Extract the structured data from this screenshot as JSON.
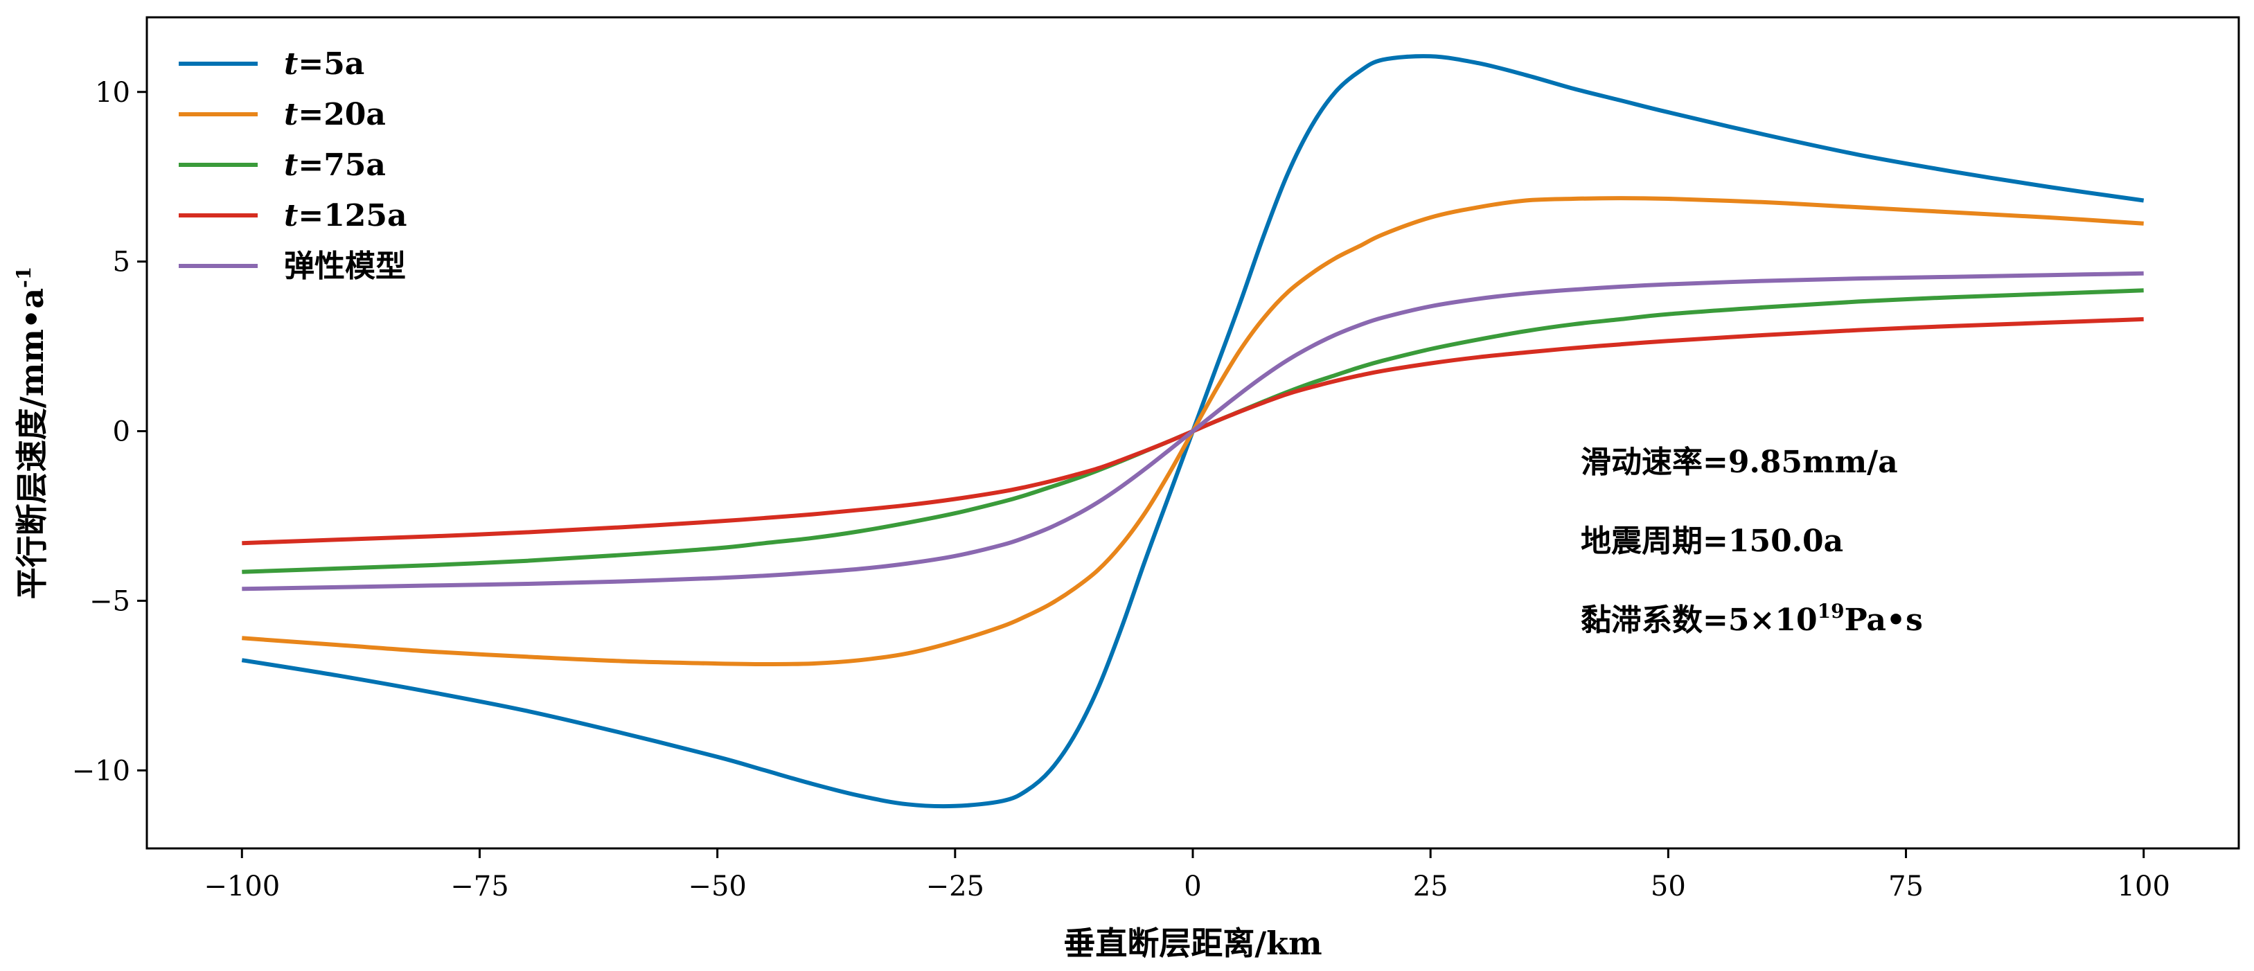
{
  "chart_data": {
    "type": "line",
    "xlabel": "垂直断层距离/km",
    "ylabel": {
      "base": "平行断层速度/mm•a",
      "sup": "-1"
    },
    "xlim": [
      -110,
      110
    ],
    "ylim": [
      -12.3,
      12.2
    ],
    "xticks": [
      -100,
      -75,
      -50,
      -25,
      0,
      25,
      50,
      75,
      100
    ],
    "xtick_labels": [
      "−100",
      "−75",
      "−50",
      "−25",
      "0",
      "25",
      "50",
      "75",
      "100"
    ],
    "yticks": [
      -10,
      -5,
      0,
      5,
      10
    ],
    "ytick_labels": [
      "−10",
      "−5",
      "0",
      "5",
      "10"
    ],
    "grid": false,
    "legend_position": "top-left",
    "x": [
      -100,
      -90,
      -80,
      -70,
      -60,
      -50,
      -45,
      -40,
      -35,
      -30,
      -25,
      -20,
      -17.5,
      -15,
      -12.5,
      -10,
      -7.5,
      -5,
      -2.5,
      0,
      2.5,
      5,
      7.5,
      10,
      12.5,
      15,
      17.5,
      20,
      25,
      30,
      35,
      40,
      45,
      50,
      60,
      70,
      80,
      90,
      100
    ],
    "series": [
      {
        "name": {
          "italic": "t",
          "rest": "=5a"
        },
        "color": "#0072b2",
        "values": [
          -6.75,
          -7.2,
          -7.7,
          -8.25,
          -8.9,
          -9.6,
          -10.0,
          -10.4,
          -10.75,
          -11.0,
          -11.05,
          -10.9,
          -10.6,
          -10.0,
          -9.0,
          -7.6,
          -5.8,
          -3.8,
          -1.9,
          0,
          1.9,
          3.8,
          5.8,
          7.6,
          9.0,
          10.0,
          10.6,
          10.95,
          11.05,
          10.85,
          10.5,
          10.1,
          9.75,
          9.4,
          8.75,
          8.15,
          7.65,
          7.2,
          6.8
        ]
      },
      {
        "name": {
          "italic": "t",
          "rest": "=20a"
        },
        "color": "#e8851a",
        "values": [
          -6.1,
          -6.3,
          -6.5,
          -6.65,
          -6.78,
          -6.85,
          -6.87,
          -6.85,
          -6.75,
          -6.55,
          -6.2,
          -5.75,
          -5.45,
          -5.1,
          -4.65,
          -4.1,
          -3.35,
          -2.4,
          -1.25,
          0,
          1.25,
          2.4,
          3.35,
          4.1,
          4.65,
          5.1,
          5.45,
          5.8,
          6.3,
          6.6,
          6.8,
          6.85,
          6.87,
          6.85,
          6.75,
          6.6,
          6.45,
          6.3,
          6.12
        ]
      },
      {
        "name": {
          "italic": "t",
          "rest": "=75a"
        },
        "color": "#3a9b3a",
        "values": [
          -4.15,
          -4.05,
          -3.95,
          -3.82,
          -3.65,
          -3.45,
          -3.3,
          -3.15,
          -2.95,
          -2.7,
          -2.42,
          -2.08,
          -1.88,
          -1.65,
          -1.42,
          -1.16,
          -0.88,
          -0.59,
          -0.3,
          0,
          0.3,
          0.59,
          0.88,
          1.16,
          1.42,
          1.65,
          1.88,
          2.08,
          2.42,
          2.7,
          2.95,
          3.15,
          3.3,
          3.45,
          3.65,
          3.82,
          3.95,
          4.05,
          4.15
        ]
      },
      {
        "name": {
          "italic": "t",
          "rest": "=125a"
        },
        "color": "#d62d20",
        "values": [
          -3.3,
          -3.2,
          -3.1,
          -2.98,
          -2.83,
          -2.66,
          -2.56,
          -2.45,
          -2.32,
          -2.18,
          -2.0,
          -1.78,
          -1.64,
          -1.48,
          -1.3,
          -1.1,
          -0.85,
          -0.58,
          -0.3,
          0,
          0.3,
          0.58,
          0.85,
          1.1,
          1.3,
          1.48,
          1.64,
          1.78,
          2.0,
          2.18,
          2.32,
          2.45,
          2.56,
          2.66,
          2.83,
          2.98,
          3.1,
          3.2,
          3.3
        ]
      },
      {
        "name": {
          "italic": "",
          "rest": "弹性模型"
        },
        "color": "#8a68b0",
        "values": [
          -4.65,
          -4.6,
          -4.55,
          -4.5,
          -4.43,
          -4.33,
          -4.26,
          -4.17,
          -4.06,
          -3.9,
          -3.68,
          -3.35,
          -3.12,
          -2.84,
          -2.5,
          -2.1,
          -1.63,
          -1.11,
          -0.56,
          0,
          0.56,
          1.11,
          1.63,
          2.1,
          2.5,
          2.84,
          3.12,
          3.35,
          3.68,
          3.9,
          4.06,
          4.17,
          4.26,
          4.33,
          4.43,
          4.5,
          4.55,
          4.6,
          4.65
        ]
      }
    ],
    "annotations": [
      {
        "text": "滑动速率=9.85mm/a",
        "sup": ""
      },
      {
        "text": "地震周期=150.0a",
        "sup": ""
      },
      {
        "text": "黏滞系数=5×10",
        "sup": "19",
        "after": "Pa•s"
      }
    ]
  }
}
